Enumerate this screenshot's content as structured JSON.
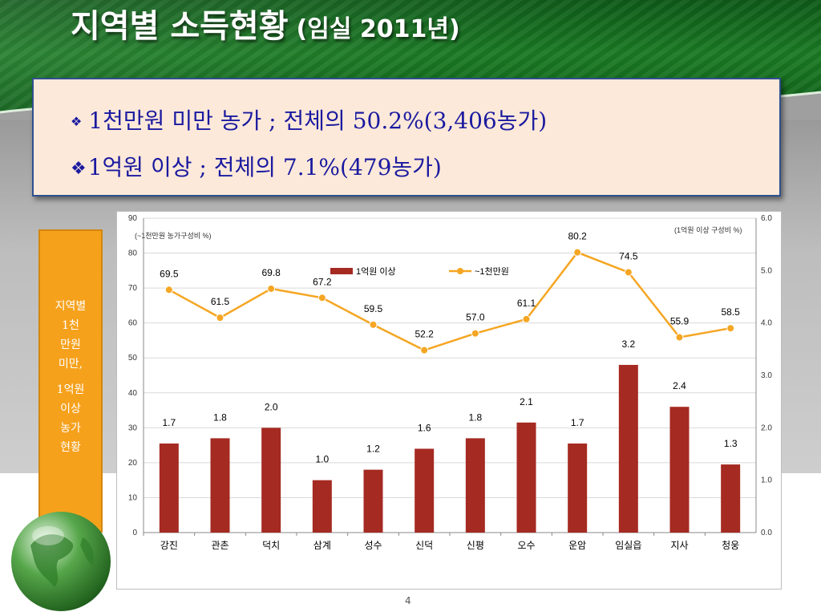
{
  "slide": {
    "title": "지역별 소득현황",
    "title_sub": "(임실 2011년)",
    "bullets": [
      {
        "marker": "❖",
        "text": "1천만원 미만 농가 ; 전체의 50.2%(3,406농가)"
      },
      {
        "marker": "❖",
        "text": "1억원 이상 ; 전체의 7.1%(479농가)"
      }
    ],
    "side_label_1": [
      "지역별",
      "1천",
      "만원",
      "미만,"
    ],
    "side_label_2": [
      "1억원",
      "이상",
      "농가",
      "현황"
    ],
    "page_number": "4"
  },
  "colors": {
    "header_green": "#1a7a24",
    "bar": "#a52a22",
    "line": "#f5a623",
    "side_box": "#f6a11c",
    "info_box_bg": "#fde9d9",
    "bullet_text": "#1a1aa0"
  },
  "chart_data": {
    "type": "bar",
    "categories": [
      "강진",
      "관촌",
      "덕치",
      "삼계",
      "성수",
      "신덕",
      "신평",
      "오수",
      "운암",
      "임실읍",
      "지사",
      "청웅"
    ],
    "left_axis_note": "(~1천만원 농가구성비 %)",
    "right_axis_note": "(1억원 이상 구성비 %)",
    "left_ylim": [
      0,
      90
    ],
    "left_ticks": [
      0,
      10,
      20,
      30,
      40,
      50,
      60,
      70,
      80,
      90
    ],
    "right_ylim": [
      0.0,
      6.0
    ],
    "right_ticks": [
      "0.0",
      "1.0",
      "2.0",
      "3.0",
      "4.0",
      "5.0",
      "6.0"
    ],
    "grid": true,
    "legend_position": "top-center",
    "series": [
      {
        "name": "1억원 이상",
        "type": "bar",
        "axis": "right",
        "color": "#a52a22",
        "values": [
          1.7,
          1.8,
          2.0,
          1.0,
          1.2,
          1.6,
          1.8,
          2.1,
          1.7,
          3.2,
          2.4,
          1.3
        ],
        "labels": [
          "1.7",
          "1.8",
          "2.0",
          "1.0",
          "1.2",
          "1.6",
          "1.8",
          "2.1",
          "1.7",
          "3.2",
          "2.4",
          "1.3"
        ]
      },
      {
        "name": "~1천만원",
        "type": "line",
        "axis": "left",
        "color": "#f5a623",
        "values": [
          69.5,
          61.5,
          69.8,
          67.2,
          59.5,
          52.2,
          57.0,
          61.1,
          80.2,
          74.5,
          55.9,
          58.5
        ],
        "labels": [
          "69.5",
          "61.5",
          "69.8",
          "67.2",
          "59.5",
          "52.2",
          "57.0",
          "61.1",
          "80.2",
          "74.5",
          "55.9",
          "58.5"
        ]
      }
    ]
  }
}
